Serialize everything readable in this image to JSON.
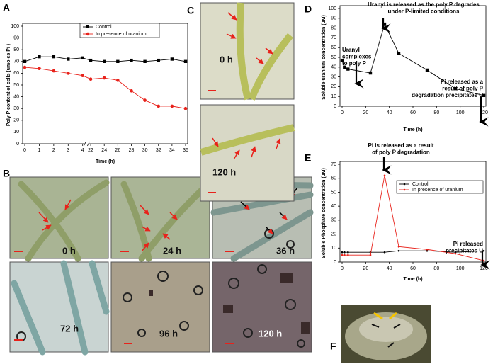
{
  "chart_data": [
    {
      "type": "line",
      "panel": "A",
      "y_label": "Poly P content of cells (umoles Pi )",
      "x_label": "Time (h)",
      "x": [
        0,
        1,
        2,
        3,
        4,
        22,
        24,
        26,
        28,
        30,
        32,
        34,
        36
      ],
      "axis_break": [
        4,
        22
      ],
      "series": [
        {
          "name": "Control",
          "color": "#000000",
          "marker": "square",
          "values": [
            70,
            74,
            74,
            72,
            73,
            71,
            70,
            70,
            71,
            70,
            71,
            72,
            70
          ]
        },
        {
          "name": "In presence of uranium",
          "color": "#e8221b",
          "marker": "circle",
          "values": [
            65,
            64,
            62,
            60,
            58,
            55,
            56,
            54,
            45,
            37,
            32,
            32,
            30
          ]
        }
      ],
      "xlim": [
        0,
        36
      ],
      "xticks": [
        0,
        1,
        2,
        3,
        4,
        22,
        24,
        26,
        28,
        30,
        32,
        34,
        36
      ],
      "ylim": [
        0,
        100
      ],
      "yticks": [
        0,
        10,
        20,
        30,
        40,
        50,
        60,
        70,
        80,
        90,
        100
      ],
      "legend": "top"
    },
    {
      "type": "line",
      "panel": "D",
      "y_label": "Soluble uranium concentration (µM)",
      "x_label": "Time (h)",
      "x": [
        0,
        2,
        5,
        24,
        36,
        48,
        72,
        96,
        120
      ],
      "series": [
        {
          "color": "#000000",
          "marker": "square",
          "values": [
            47,
            40,
            38,
            34,
            84,
            54,
            37,
            18,
            11
          ]
        }
      ],
      "xlim": [
        0,
        120
      ],
      "xticks": [
        0,
        20,
        40,
        60,
        80,
        100,
        120
      ],
      "ylim": [
        0,
        100
      ],
      "yticks": [
        0,
        10,
        20,
        30,
        40,
        50,
        60,
        70,
        80,
        90,
        100
      ],
      "annotations": [
        {
          "lines": [
            "Uranyl is released as the poly P degrades",
            "under P-limited conditions"
          ]
        },
        {
          "lines": [
            "Uranyl",
            "complexes",
            "to poly P"
          ]
        },
        {
          "lines": [
            "Pi released as a",
            "result of poly P",
            "degradation precipitates U"
          ]
        }
      ]
    },
    {
      "type": "line",
      "panel": "E",
      "y_label": "Soluble Phosphate concentration (µM)",
      "x_label": "Time (h)",
      "x": [
        0,
        2,
        5,
        24,
        36,
        48,
        72,
        96,
        120
      ],
      "series": [
        {
          "name": "Control",
          "color": "#000000",
          "marker": "dot",
          "values": [
            7,
            7,
            7,
            7,
            7,
            8,
            8,
            7,
            8
          ]
        },
        {
          "name": "In presence of uranium",
          "color": "#e8221b",
          "marker": "dot",
          "values": [
            5,
            5,
            5,
            5,
            62,
            11,
            9,
            6,
            1
          ]
        }
      ],
      "xlim": [
        0,
        120
      ],
      "xticks": [
        0,
        20,
        40,
        60,
        80,
        100,
        120
      ],
      "ylim": [
        0,
        70
      ],
      "yticks": [
        0,
        10,
        20,
        30,
        40,
        50,
        60,
        70
      ],
      "legend": "top right",
      "annotations": [
        {
          "lines": [
            "Pi is released as a result",
            "of poly P degradation"
          ]
        },
        {
          "lines": [
            "Pi released",
            "precipitates U"
          ]
        }
      ]
    }
  ],
  "micrographs": {
    "B": {
      "panel": "B",
      "labels": [
        "0 h",
        "24 h",
        "36 h",
        "72 h",
        "96 h",
        "120 h"
      ]
    },
    "C": {
      "panel": "C",
      "labels": [
        "0 h",
        "120 h"
      ]
    },
    "F": {
      "panel": "F"
    }
  }
}
